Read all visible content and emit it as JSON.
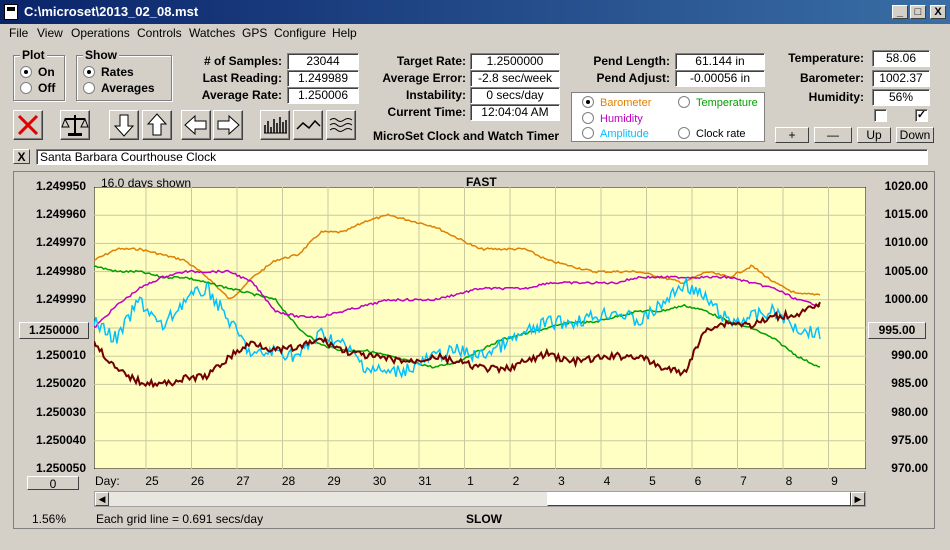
{
  "window": {
    "title": "C:\\microset\\2013_02_08.mst",
    "min_label": "_",
    "max_label": "□",
    "close_label": "X"
  },
  "menu": [
    "File",
    "View",
    "Operations",
    "Controls",
    "Watches",
    "GPS",
    "Configure",
    "Help"
  ],
  "plot_group": {
    "title": "Plot",
    "on": "On",
    "off": "Off",
    "selected": "On"
  },
  "show_group": {
    "title": "Show",
    "rates": "Rates",
    "averages": "Averages",
    "selected": "Rates"
  },
  "stats": {
    "samples_label": "# of Samples:",
    "samples": "23044",
    "last_label": "Last Reading:",
    "last": "1.249989",
    "avg_label": "Average Rate:",
    "avg": "1.250006"
  },
  "rates": {
    "target_label": "Target Rate:",
    "target": "1.2500000",
    "error_label": "Average Error:",
    "error": "-2.8 sec/week",
    "instability_label": "Instability:",
    "instability": "0 secs/day",
    "time_label": "Current Time:",
    "time": "12:04:04 AM"
  },
  "timer_title": "MicroSet Clock and Watch Timer",
  "pend": {
    "length_label": "Pend Length:",
    "length": "61.144 in",
    "adjust_label": "Pend Adjust:",
    "adjust": "-0.00056 in"
  },
  "overlay_options": [
    {
      "label": "Barometer",
      "color": "#e08000",
      "selected": true
    },
    {
      "label": "Temperature",
      "color": "#00a000",
      "selected": false
    },
    {
      "label": "Humidity",
      "color": "#c000c0",
      "selected": false
    },
    {
      "label": "Clock rate",
      "color": "#000000",
      "selected": false
    },
    {
      "label": "Amplitude",
      "color": "#00c0ff",
      "selected": false
    }
  ],
  "env": {
    "temp_label": "Temperature:",
    "temp": "58.06",
    "baro_label": "Barometer:",
    "baro": "1002.37",
    "hum_label": "Humidity:",
    "hum": "56%",
    "check1": "",
    "check2": "✓"
  },
  "scale_buttons": {
    "plus": "+",
    "minus": "—",
    "up": "Up",
    "down": "Down"
  },
  "description": {
    "close": "X",
    "text": "Santa Barbara Courthouse Clock"
  },
  "chart_data": {
    "type": "line",
    "top_label": "FAST",
    "bottom_label": "SLOW",
    "days_shown": "16.0 days shown",
    "grid_note": "Each grid line = 0.691 secs/day",
    "percent": "1.56%",
    "left_value_button": "1.250000",
    "right_value_button": "995.00",
    "left_zero_button": "0",
    "y_left_ticks": [
      "1.249950",
      "1.249960",
      "1.249970",
      "1.249980",
      "1.249990",
      "1.250000",
      "1.250010",
      "1.250020",
      "1.250030",
      "1.250040",
      "1.250050"
    ],
    "y_right_ticks": [
      "1020.00",
      "1015.00",
      "1010.00",
      "1005.00",
      "1000.00",
      "995.00",
      "990.00",
      "985.00",
      "980.00",
      "975.00",
      "970.00"
    ],
    "x_label": "Day:",
    "x_ticks": [
      "25",
      "26",
      "27",
      "28",
      "29",
      "30",
      "31",
      "1",
      "2",
      "3",
      "4",
      "5",
      "6",
      "7",
      "8",
      "9"
    ],
    "series": [
      {
        "name": "Barometer",
        "color": "#e08000",
        "axis": "right",
        "values": [
          1007,
          1009,
          1009,
          1008,
          1007,
          1004,
          1000,
          1004,
          1007,
          1008,
          1012,
          1012,
          1014,
          1015,
          1014,
          1013,
          1011,
          1009,
          1009,
          1009,
          1007,
          1006,
          1005,
          1005,
          1005,
          1004,
          1003,
          1005,
          1004,
          1006,
          1003,
          1001,
          1001
        ]
      },
      {
        "name": "Temperature",
        "color": "#00a000",
        "axis": "right",
        "values": [
          1006,
          1005,
          1005,
          1004,
          1004,
          1003,
          1002,
          1001,
          1000,
          995,
          992,
          991,
          991,
          990,
          989,
          988,
          989,
          991,
          993,
          994,
          995,
          996,
          996,
          997,
          998,
          998,
          999,
          998,
          996,
          995,
          993,
          990,
          988
        ]
      },
      {
        "name": "Humidity",
        "color": "#c000c0",
        "axis": "right",
        "values": [
          995,
          999,
          1002,
          1004,
          1005,
          1005,
          1005,
          1003,
          998,
          997,
          997,
          998,
          999,
          1000,
          1000,
          1000,
          1001,
          1002,
          1002,
          1002,
          1003,
          1003,
          1003,
          1003,
          1004,
          1004,
          1004,
          1004,
          1004,
          1003,
          1002,
          1000,
          999
        ]
      },
      {
        "name": "Amplitude",
        "color": "#00c0ff",
        "axis": "right",
        "values": [
          996,
          993,
          1000,
          995,
          1000,
          1002,
          996,
          990,
          991,
          990,
          994,
          992,
          988,
          987,
          988,
          990,
          991,
          990,
          992,
          994,
          996,
          996,
          997,
          998,
          996,
          999,
          1003,
          1000,
          996,
          997,
          998,
          995,
          994
        ]
      },
      {
        "name": "Clock rate",
        "color": "#700000",
        "axis": "left",
        "values": [
          1.250005,
          1.250015,
          1.250019,
          1.25002,
          1.250018,
          1.250017,
          1.25001,
          1.250005,
          1.250008,
          1.250007,
          1.250004,
          1.250008,
          1.25001,
          1.250011,
          1.250012,
          1.25001,
          1.250012,
          1.250014,
          1.250015,
          1.250012,
          1.250009,
          1.250012,
          1.250011,
          1.25001,
          1.25001,
          1.250014,
          1.250016,
          1.25,
          1.249998,
          1.249999,
          1.249996,
          1.249995,
          1.249992
        ]
      }
    ]
  }
}
